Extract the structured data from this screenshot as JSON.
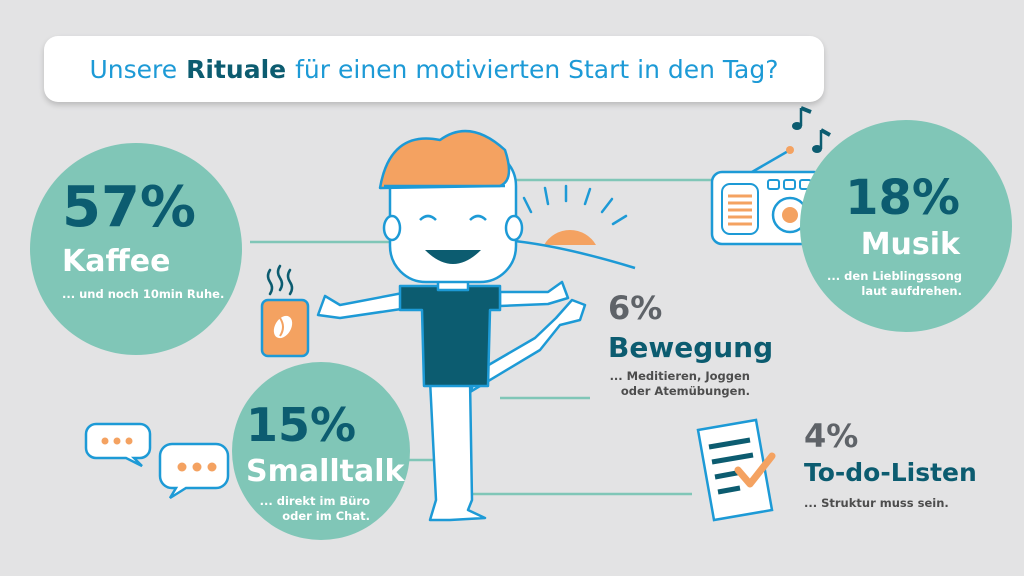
{
  "title": {
    "pre": "Unsere",
    "bold": "Rituale",
    "post": "für einen motivierten Start in den Tag?"
  },
  "stats": {
    "kaffee": {
      "pct": "57%",
      "label": "Kaffee",
      "sub": "... und noch 10min Ruhe."
    },
    "musik": {
      "pct": "18%",
      "label": "Musik",
      "sub1": "... den Lieblingssong",
      "sub2": "laut aufdrehen."
    },
    "bewegung": {
      "pct": "6%",
      "label": "Bewegung",
      "sub1": "... Meditieren, Joggen",
      "sub2": "oder Atemübungen."
    },
    "smalltalk": {
      "pct": "15%",
      "label": "Smalltalk",
      "sub1": "... direkt im Büro",
      "sub2": "oder im Chat."
    },
    "todo": {
      "pct": "4%",
      "label": "To-do-Listen",
      "sub": "... Struktur muss sein."
    }
  },
  "colors": {
    "teal_circle": "#80c6b7",
    "dark_teal": "#0c5c70",
    "orange": "#f4a261",
    "blue_text": "#1d9ad6",
    "background": "#e3e3e4"
  },
  "icons": [
    "coffee-cup-icon",
    "radio-icon",
    "music-notes-icon",
    "sun-icon",
    "chat-bubble-icon",
    "todo-checklist-icon",
    "person-illustration"
  ]
}
